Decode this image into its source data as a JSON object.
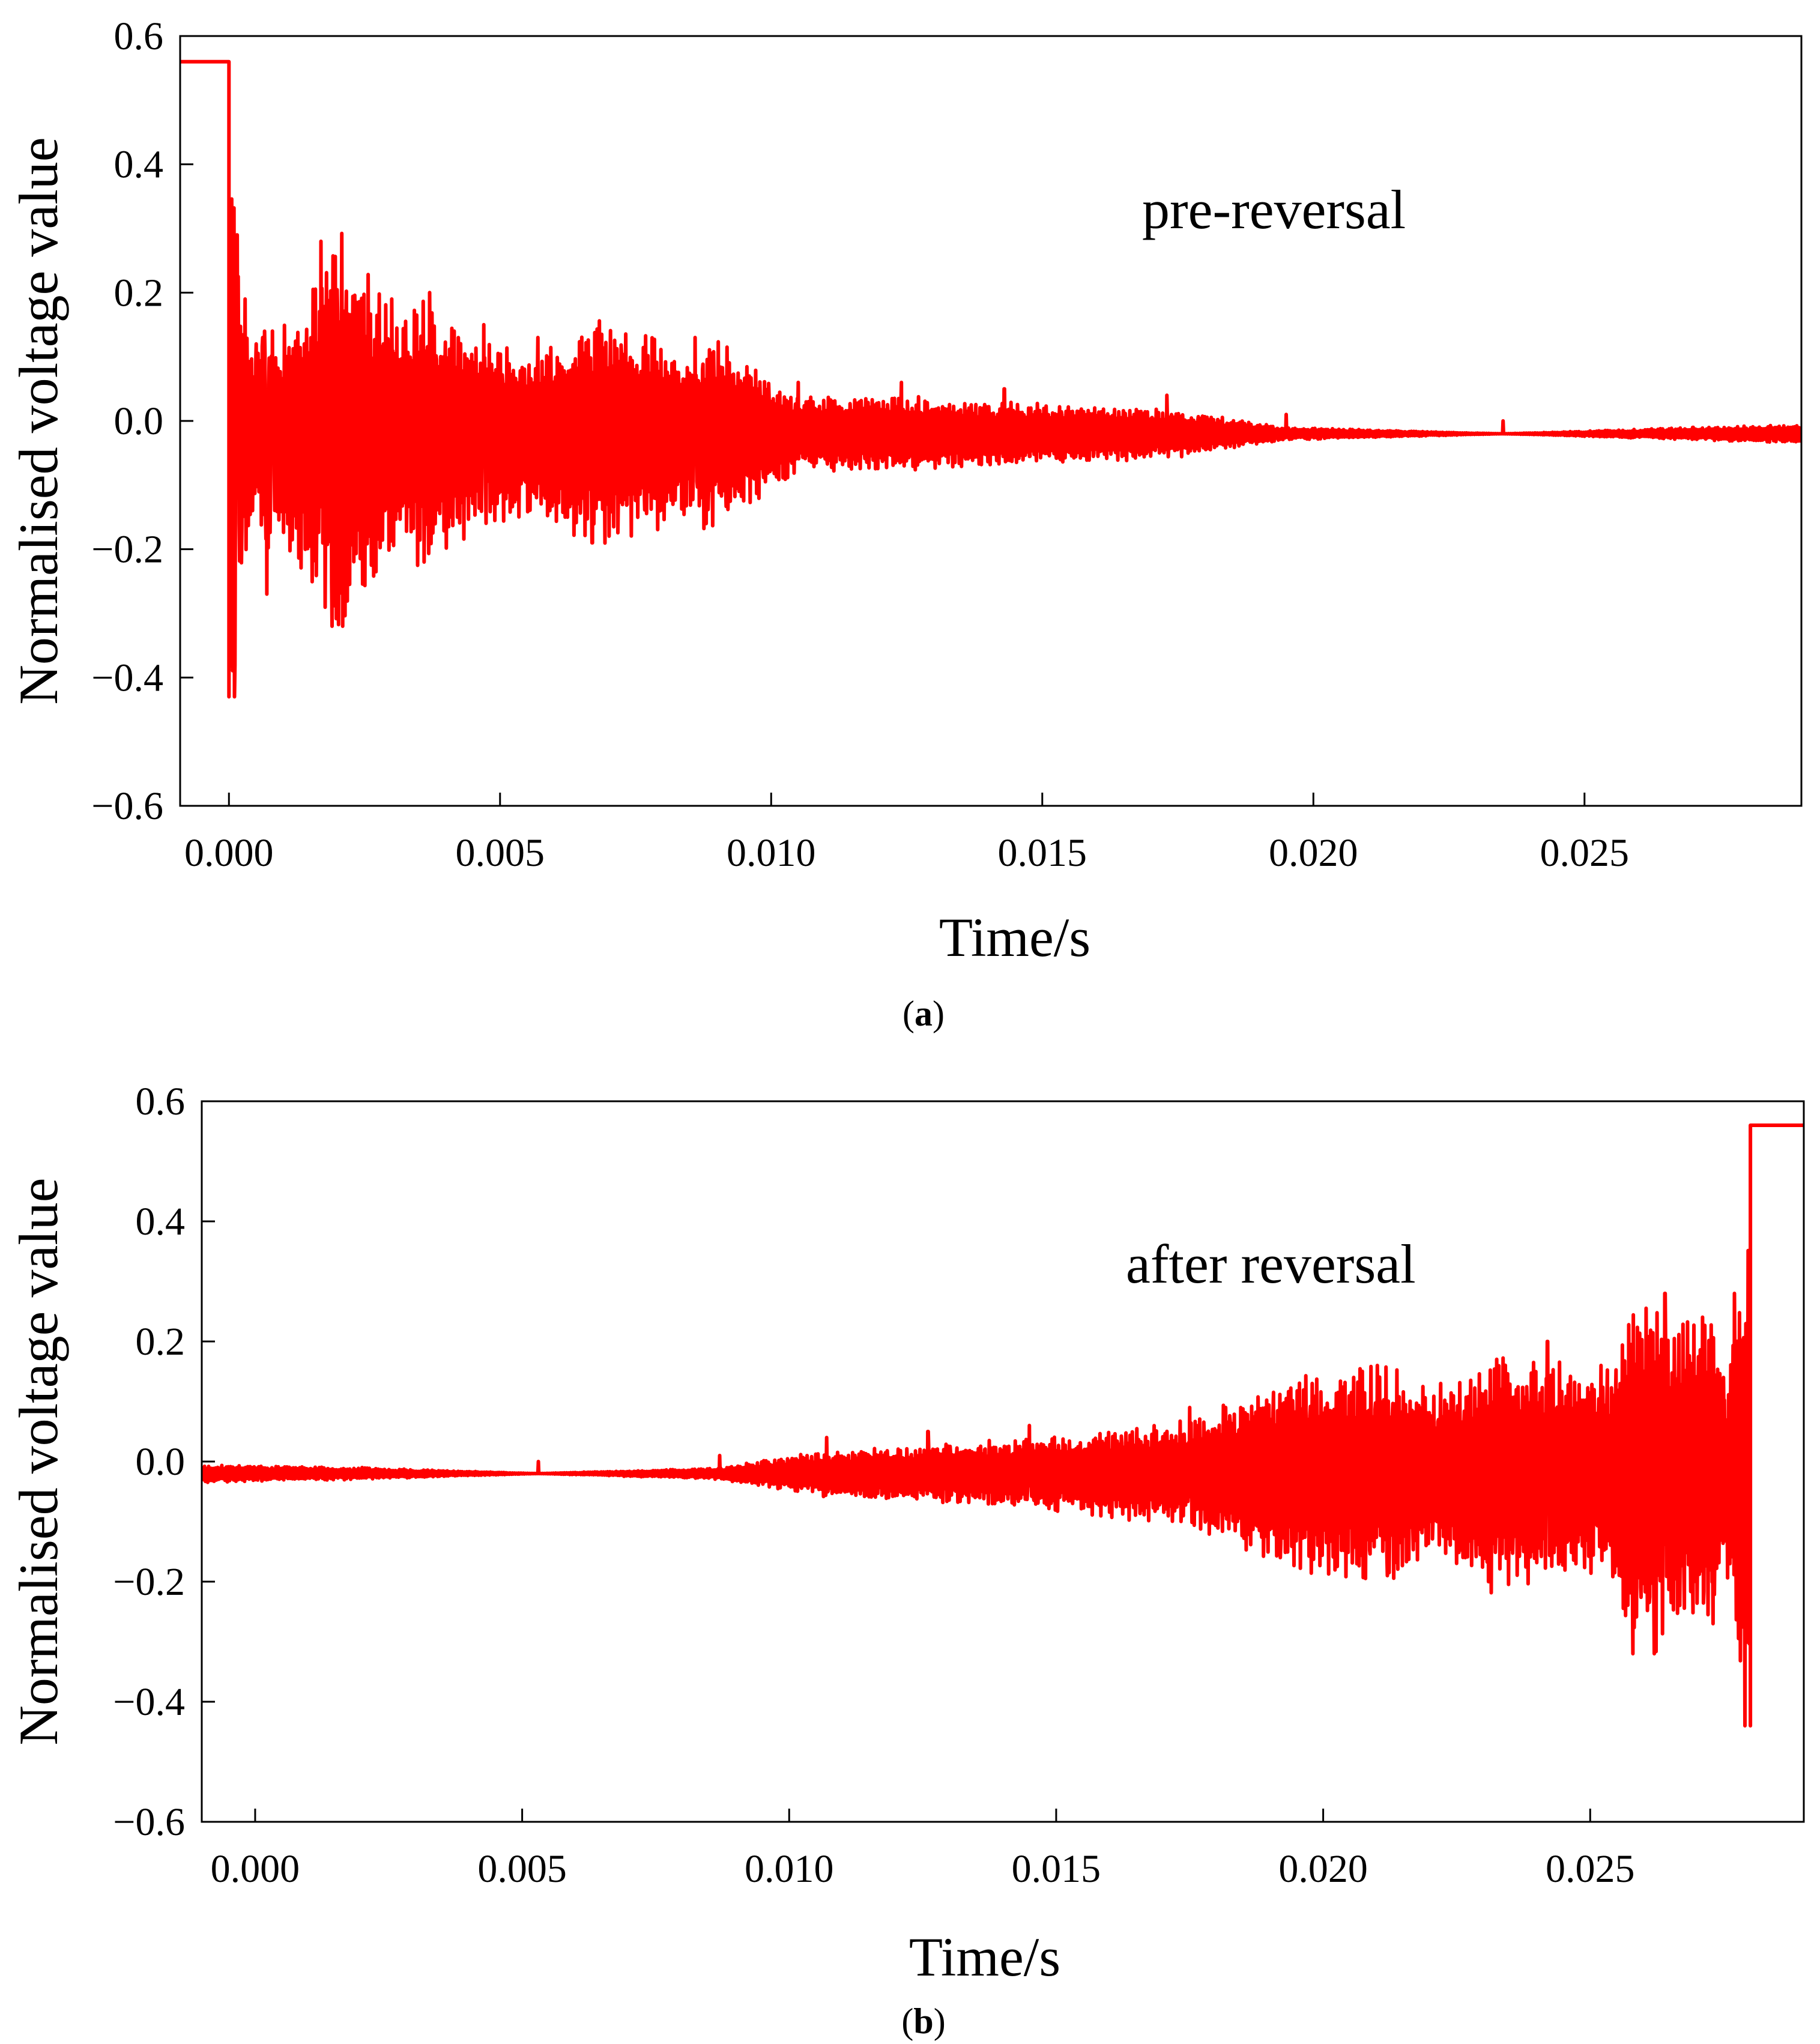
{
  "chart_data": [
    {
      "type": "line",
      "caption": "(a)",
      "caption_letter": "a",
      "xlabel": "Time/s",
      "ylabel": "Normalised voltage value",
      "annotation": "pre-reversal",
      "xlim": [
        -0.0009,
        0.029
      ],
      "ylim": [
        -0.6,
        0.6
      ],
      "xticks": [
        0.0,
        0.005,
        0.01,
        0.015,
        0.02,
        0.025
      ],
      "xtick_labels": [
        "0.000",
        "0.005",
        "0.010",
        "0.015",
        "0.020",
        "0.025"
      ],
      "yticks": [
        0.6,
        0.4,
        0.2,
        0.0,
        -0.2,
        -0.4,
        -0.6
      ],
      "ytick_labels": [
        "0.6",
        "0.4",
        "0.2",
        "0.0",
        "−0.2",
        "−0.4",
        "−0.6"
      ],
      "grid": false,
      "line_color": "#ff0000",
      "series": [
        {
          "name": "pre-reversal",
          "direction": "decay",
          "x_start": -0.0009,
          "x_step_end": 0.0,
          "step_level": 0.56,
          "x_end": 0.029,
          "baseline": -0.02,
          "peaks": [
            {
              "x": 0.0001,
              "v": -0.43
            },
            {
              "x": 0.00015,
              "v": 0.29
            },
            {
              "x": 0.0003,
              "v": 0.19
            },
            {
              "x": 0.0005,
              "v": 0.12
            },
            {
              "x": 0.0007,
              "v": -0.27
            },
            {
              "x": 0.0008,
              "v": 0.14
            },
            {
              "x": 0.0017,
              "v": 0.28
            },
            {
              "x": 0.0019,
              "v": -0.32
            },
            {
              "x": 0.0021,
              "v": -0.32
            },
            {
              "x": 0.003,
              "v": 0.19
            },
            {
              "x": 0.0036,
              "v": -0.22
            },
            {
              "x": 0.0037,
              "v": 0.2
            },
            {
              "x": 0.0047,
              "v": 0.15
            },
            {
              "x": 0.0057,
              "v": 0.13
            },
            {
              "x": 0.0067,
              "v": -0.19
            },
            {
              "x": 0.0086,
              "v": 0.13
            },
            {
              "x": 0.0088,
              "v": -0.16
            },
            {
              "x": 0.0105,
              "v": 0.06
            },
            {
              "x": 0.0124,
              "v": 0.06
            },
            {
              "x": 0.0143,
              "v": 0.05
            },
            {
              "x": 0.0173,
              "v": 0.04
            },
            {
              "x": 0.0195,
              "v": 0.01
            },
            {
              "x": 0.0235,
              "v": 0.0
            },
            {
              "x": 0.027,
              "v": -0.01
            },
            {
              "x": 0.029,
              "v": -0.015
            }
          ]
        }
      ]
    },
    {
      "type": "line",
      "caption": "(b)",
      "caption_letter": "b",
      "xlabel": "Time/s",
      "ylabel": "Normalised voltage value",
      "annotation": "after reversal",
      "xlim": [
        -0.001,
        0.029
      ],
      "ylim": [
        -0.6,
        0.6
      ],
      "xticks": [
        0.0,
        0.005,
        0.01,
        0.015,
        0.02,
        0.025
      ],
      "xtick_labels": [
        "0.000",
        "0.005",
        "0.010",
        "0.015",
        "0.020",
        "0.025"
      ],
      "yticks": [
        0.6,
        0.4,
        0.2,
        0.0,
        -0.2,
        -0.4,
        -0.6
      ],
      "ytick_labels": [
        "0.6",
        "0.4",
        "0.2",
        "0.0",
        "−0.2",
        "−0.4",
        "−0.6"
      ],
      "grid": false,
      "line_color": "#ff0000",
      "series": [
        {
          "name": "after reversal",
          "direction": "grow",
          "x_start": -0.001,
          "x_step_start": 0.028,
          "step_level": 0.56,
          "x_end": 0.029,
          "baseline": -0.02,
          "peaks": [
            {
              "x": -0.001,
              "v": -0.015
            },
            {
              "x": 0.002,
              "v": -0.01
            },
            {
              "x": 0.0053,
              "v": 0.0
            },
            {
              "x": 0.0087,
              "v": 0.01
            },
            {
              "x": 0.0107,
              "v": 0.04
            },
            {
              "x": 0.0126,
              "v": 0.05
            },
            {
              "x": 0.0145,
              "v": 0.06
            },
            {
              "x": 0.0175,
              "v": 0.09
            },
            {
              "x": 0.0192,
              "v": -0.16
            },
            {
              "x": 0.0212,
              "v": -0.19
            },
            {
              "x": 0.0222,
              "v": 0.13
            },
            {
              "x": 0.0231,
              "v": -0.2
            },
            {
              "x": 0.0242,
              "v": 0.2
            },
            {
              "x": 0.0252,
              "v": 0.16
            },
            {
              "x": 0.0258,
              "v": -0.32
            },
            {
              "x": 0.0262,
              "v": -0.32
            },
            {
              "x": 0.0264,
              "v": 0.28
            },
            {
              "x": 0.0273,
              "v": -0.27
            },
            {
              "x": 0.0275,
              "v": 0.14
            },
            {
              "x": 0.0277,
              "v": 0.28
            },
            {
              "x": 0.0279,
              "v": -0.44
            }
          ]
        }
      ]
    }
  ]
}
